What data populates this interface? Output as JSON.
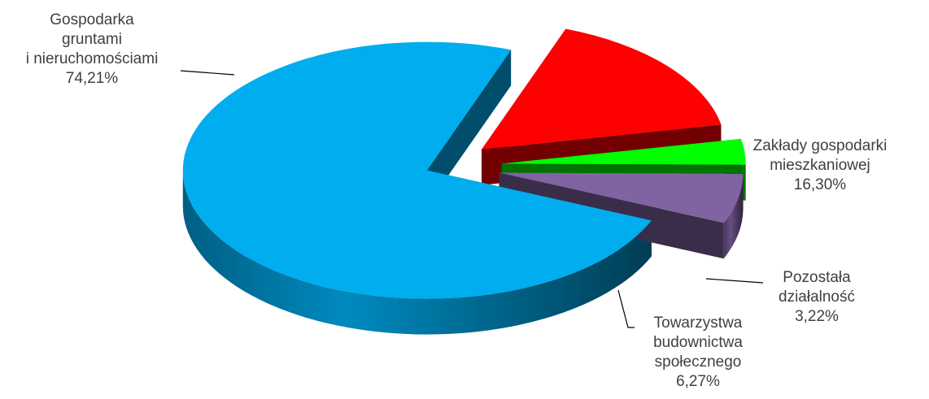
{
  "chart_data": {
    "type": "pie",
    "variant": "3d-exploded",
    "title": "",
    "slices": [
      {
        "name_lines": [
          "Gospodarka",
          "gruntami",
          "i nieruchomościami"
        ],
        "value": 74.21,
        "value_label": "74,21%",
        "color": "#00ADEF",
        "exploded": true
      },
      {
        "name_lines": [
          "Zakłady gospodarki",
          "mieszkaniowej"
        ],
        "value": 16.3,
        "value_label": "16,30%",
        "color": "#FF0000",
        "exploded": true
      },
      {
        "name_lines": [
          "Pozostała",
          "działalność"
        ],
        "value": 3.22,
        "value_label": "3,22%",
        "color": "#00FF00",
        "exploded": true
      },
      {
        "name_lines": [
          "Towarzystwa",
          "budownictwa",
          "społecznego"
        ],
        "value": 6.27,
        "value_label": "6,27%",
        "color": "#8064A2",
        "exploded": true
      }
    ],
    "legend": "none",
    "labels": "outside-with-leader-lines"
  }
}
